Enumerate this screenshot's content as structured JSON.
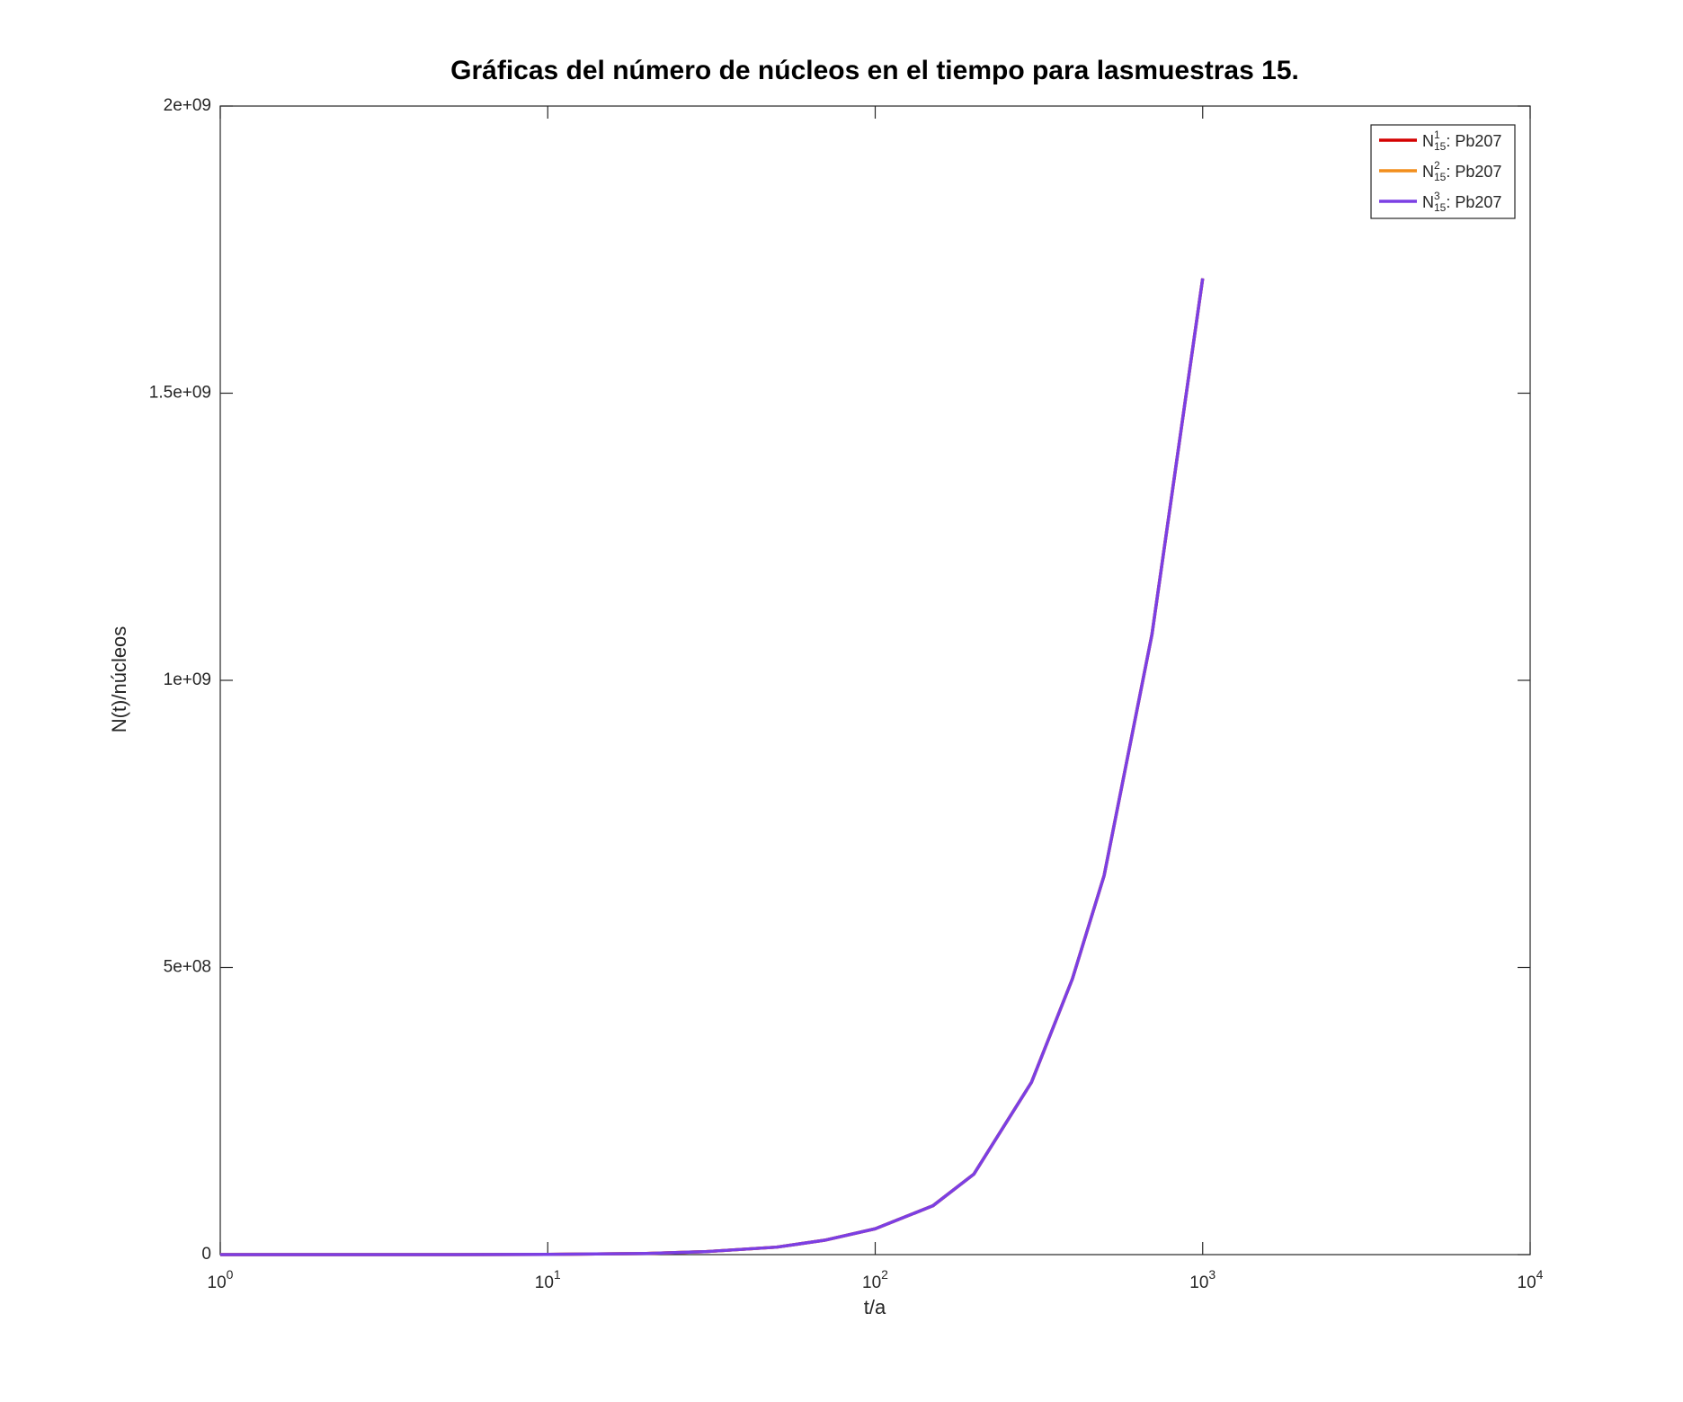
{
  "chart_data": {
    "type": "line",
    "title": "Gráficas del número de núcleos en el tiempo para lasmuestras 15.",
    "xlabel": "t/a",
    "ylabel": "N(t)/núcleos",
    "xscale": "log",
    "xlim": [
      1,
      10000
    ],
    "ylim": [
      0,
      2000000000
    ],
    "xticks": [
      {
        "value": 1,
        "label": "10",
        "exponent": "0"
      },
      {
        "value": 10,
        "label": "10",
        "exponent": "1"
      },
      {
        "value": 100,
        "label": "10",
        "exponent": "2"
      },
      {
        "value": 1000,
        "label": "10",
        "exponent": "3"
      },
      {
        "value": 10000,
        "label": "10",
        "exponent": "4"
      }
    ],
    "yticks": [
      0,
      {
        "value": 500000000,
        "label": "5e+08"
      },
      {
        "value": 1000000000,
        "label": "1e+09"
      },
      {
        "value": 1500000000,
        "label": "1.5e+09"
      },
      {
        "value": 2000000000,
        "label": "2e+09"
      }
    ],
    "grid": false,
    "legend_position": "top-right",
    "x": [
      1,
      2,
      5,
      10,
      20,
      30,
      50,
      70,
      100,
      150,
      200,
      300,
      400,
      500,
      700,
      1000
    ],
    "series": [
      {
        "name": "Pb207",
        "symbol": "N",
        "sup": "1",
        "sub": "15",
        "separator": ": ",
        "color": "#d40000",
        "values": [
          0,
          0,
          0,
          300000,
          2000000,
          5000000,
          13000000,
          25000000,
          45000000,
          85000000,
          140000000,
          300000000,
          480000000,
          660000000,
          1080000000,
          1700000000
        ]
      },
      {
        "name": "Pb207",
        "symbol": "N",
        "sup": "2",
        "sub": "15",
        "separator": ": ",
        "color": "#f28e1c",
        "values": [
          0,
          0,
          0,
          300000,
          2000000,
          5000000,
          13000000,
          25000000,
          45000000,
          85000000,
          140000000,
          300000000,
          480000000,
          660000000,
          1080000000,
          1700000000
        ]
      },
      {
        "name": "Pb207",
        "symbol": "N",
        "sup": "3",
        "sub": "15",
        "separator": ": ",
        "color": "#7b3fe4",
        "values": [
          0,
          0,
          0,
          300000,
          2000000,
          5000000,
          13000000,
          25000000,
          45000000,
          85000000,
          140000000,
          300000000,
          480000000,
          660000000,
          1080000000,
          1700000000
        ]
      }
    ]
  }
}
